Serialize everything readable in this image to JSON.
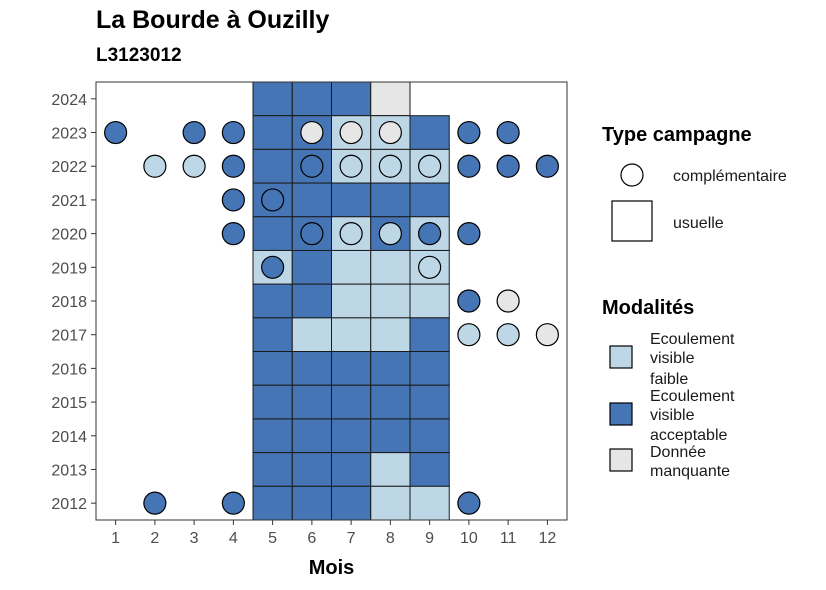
{
  "chart_data": {
    "type": "heatmap",
    "title": "La Bourde à Ouzilly",
    "subtitle": "L3123012",
    "xlabel": "Mois",
    "ylabel": "",
    "x_ticks": [
      "1",
      "2",
      "3",
      "4",
      "5",
      "6",
      "7",
      "8",
      "9",
      "10",
      "11",
      "12"
    ],
    "y_ticks": [
      "2012",
      "2013",
      "2014",
      "2015",
      "2016",
      "2017",
      "2018",
      "2019",
      "2020",
      "2021",
      "2022",
      "2023",
      "2024"
    ],
    "xlim": [
      0.5,
      12.5
    ],
    "ylim": [
      2011.5,
      2024.5
    ],
    "grid": false,
    "legend_position": "right",
    "colors": {
      "faible": "#bdd7e7",
      "acceptable": "#4575b4",
      "manquante": "#e6e6e6"
    },
    "legend": {
      "type_title": "Type campagne",
      "type_items": [
        {
          "shape": "circle",
          "label": "complémentaire"
        },
        {
          "shape": "square",
          "label": "usuelle"
        }
      ],
      "mod_title": "Modalités",
      "mod_items": [
        {
          "key": "faible",
          "lines": [
            "Ecoulement",
            "visible",
            "faible"
          ]
        },
        {
          "key": "acceptable",
          "lines": [
            "Ecoulement",
            "visible",
            "acceptable"
          ]
        },
        {
          "key": "manquante",
          "lines": [
            "Donnée",
            "manquante"
          ]
        }
      ]
    },
    "usuelle": [
      {
        "year": 2024,
        "month": 5,
        "mod": "acceptable"
      },
      {
        "year": 2024,
        "month": 6,
        "mod": "acceptable"
      },
      {
        "year": 2024,
        "month": 7,
        "mod": "acceptable"
      },
      {
        "year": 2024,
        "month": 8,
        "mod": "manquante"
      },
      {
        "year": 2023,
        "month": 5,
        "mod": "acceptable"
      },
      {
        "year": 2023,
        "month": 6,
        "mod": "acceptable"
      },
      {
        "year": 2023,
        "month": 7,
        "mod": "faible"
      },
      {
        "year": 2023,
        "month": 8,
        "mod": "faible"
      },
      {
        "year": 2023,
        "month": 9,
        "mod": "acceptable"
      },
      {
        "year": 2022,
        "month": 5,
        "mod": "acceptable"
      },
      {
        "year": 2022,
        "month": 6,
        "mod": "acceptable"
      },
      {
        "year": 2022,
        "month": 7,
        "mod": "faible"
      },
      {
        "year": 2022,
        "month": 8,
        "mod": "faible"
      },
      {
        "year": 2022,
        "month": 9,
        "mod": "faible"
      },
      {
        "year": 2021,
        "month": 5,
        "mod": "acceptable"
      },
      {
        "year": 2021,
        "month": 6,
        "mod": "acceptable"
      },
      {
        "year": 2021,
        "month": 7,
        "mod": "acceptable"
      },
      {
        "year": 2021,
        "month": 8,
        "mod": "acceptable"
      },
      {
        "year": 2021,
        "month": 9,
        "mod": "acceptable"
      },
      {
        "year": 2020,
        "month": 5,
        "mod": "acceptable"
      },
      {
        "year": 2020,
        "month": 6,
        "mod": "acceptable"
      },
      {
        "year": 2020,
        "month": 7,
        "mod": "faible"
      },
      {
        "year": 2020,
        "month": 8,
        "mod": "acceptable"
      },
      {
        "year": 2020,
        "month": 9,
        "mod": "faible"
      },
      {
        "year": 2019,
        "month": 5,
        "mod": "faible"
      },
      {
        "year": 2019,
        "month": 6,
        "mod": "acceptable"
      },
      {
        "year": 2019,
        "month": 7,
        "mod": "faible"
      },
      {
        "year": 2019,
        "month": 8,
        "mod": "faible"
      },
      {
        "year": 2019,
        "month": 9,
        "mod": "faible"
      },
      {
        "year": 2018,
        "month": 5,
        "mod": "acceptable"
      },
      {
        "year": 2018,
        "month": 6,
        "mod": "acceptable"
      },
      {
        "year": 2018,
        "month": 7,
        "mod": "faible"
      },
      {
        "year": 2018,
        "month": 8,
        "mod": "faible"
      },
      {
        "year": 2018,
        "month": 9,
        "mod": "faible"
      },
      {
        "year": 2017,
        "month": 5,
        "mod": "acceptable"
      },
      {
        "year": 2017,
        "month": 6,
        "mod": "faible"
      },
      {
        "year": 2017,
        "month": 7,
        "mod": "faible"
      },
      {
        "year": 2017,
        "month": 8,
        "mod": "faible"
      },
      {
        "year": 2017,
        "month": 9,
        "mod": "acceptable"
      },
      {
        "year": 2016,
        "month": 5,
        "mod": "acceptable"
      },
      {
        "year": 2016,
        "month": 6,
        "mod": "acceptable"
      },
      {
        "year": 2016,
        "month": 7,
        "mod": "acceptable"
      },
      {
        "year": 2016,
        "month": 8,
        "mod": "acceptable"
      },
      {
        "year": 2016,
        "month": 9,
        "mod": "acceptable"
      },
      {
        "year": 2015,
        "month": 5,
        "mod": "acceptable"
      },
      {
        "year": 2015,
        "month": 6,
        "mod": "acceptable"
      },
      {
        "year": 2015,
        "month": 7,
        "mod": "acceptable"
      },
      {
        "year": 2015,
        "month": 8,
        "mod": "acceptable"
      },
      {
        "year": 2015,
        "month": 9,
        "mod": "acceptable"
      },
      {
        "year": 2014,
        "month": 5,
        "mod": "acceptable"
      },
      {
        "year": 2014,
        "month": 6,
        "mod": "acceptable"
      },
      {
        "year": 2014,
        "month": 7,
        "mod": "acceptable"
      },
      {
        "year": 2014,
        "month": 8,
        "mod": "acceptable"
      },
      {
        "year": 2014,
        "month": 9,
        "mod": "acceptable"
      },
      {
        "year": 2013,
        "month": 5,
        "mod": "acceptable"
      },
      {
        "year": 2013,
        "month": 6,
        "mod": "acceptable"
      },
      {
        "year": 2013,
        "month": 7,
        "mod": "acceptable"
      },
      {
        "year": 2013,
        "month": 8,
        "mod": "faible"
      },
      {
        "year": 2013,
        "month": 9,
        "mod": "acceptable"
      },
      {
        "year": 2012,
        "month": 5,
        "mod": "acceptable"
      },
      {
        "year": 2012,
        "month": 6,
        "mod": "acceptable"
      },
      {
        "year": 2012,
        "month": 7,
        "mod": "acceptable"
      },
      {
        "year": 2012,
        "month": 8,
        "mod": "faible"
      },
      {
        "year": 2012,
        "month": 9,
        "mod": "faible"
      }
    ],
    "complementaire": [
      {
        "year": 2023,
        "month": 1,
        "mod": "acceptable"
      },
      {
        "year": 2023,
        "month": 3,
        "mod": "acceptable"
      },
      {
        "year": 2023,
        "month": 4,
        "mod": "acceptable"
      },
      {
        "year": 2023,
        "month": 6,
        "mod": "manquante"
      },
      {
        "year": 2023,
        "month": 7,
        "mod": "manquante"
      },
      {
        "year": 2023,
        "month": 8,
        "mod": "manquante"
      },
      {
        "year": 2023,
        "month": 10,
        "mod": "acceptable"
      },
      {
        "year": 2023,
        "month": 11,
        "mod": "acceptable"
      },
      {
        "year": 2022,
        "month": 2,
        "mod": "faible"
      },
      {
        "year": 2022,
        "month": 3,
        "mod": "faible"
      },
      {
        "year": 2022,
        "month": 4,
        "mod": "acceptable"
      },
      {
        "year": 2022,
        "month": 6,
        "mod": "acceptable"
      },
      {
        "year": 2022,
        "month": 7,
        "mod": "faible"
      },
      {
        "year": 2022,
        "month": 8,
        "mod": "faible"
      },
      {
        "year": 2022,
        "month": 9,
        "mod": "faible"
      },
      {
        "year": 2022,
        "month": 10,
        "mod": "acceptable"
      },
      {
        "year": 2022,
        "month": 11,
        "mod": "acceptable"
      },
      {
        "year": 2022,
        "month": 12,
        "mod": "acceptable"
      },
      {
        "year": 2021,
        "month": 4,
        "mod": "acceptable"
      },
      {
        "year": 2021,
        "month": 5,
        "mod": "acceptable"
      },
      {
        "year": 2020,
        "month": 4,
        "mod": "acceptable"
      },
      {
        "year": 2020,
        "month": 6,
        "mod": "acceptable"
      },
      {
        "year": 2020,
        "month": 7,
        "mod": "faible"
      },
      {
        "year": 2020,
        "month": 8,
        "mod": "faible"
      },
      {
        "year": 2020,
        "month": 9,
        "mod": "acceptable"
      },
      {
        "year": 2020,
        "month": 10,
        "mod": "acceptable"
      },
      {
        "year": 2019,
        "month": 5,
        "mod": "acceptable"
      },
      {
        "year": 2019,
        "month": 9,
        "mod": "faible"
      },
      {
        "year": 2018,
        "month": 10,
        "mod": "acceptable"
      },
      {
        "year": 2018,
        "month": 11,
        "mod": "manquante"
      },
      {
        "year": 2017,
        "month": 10,
        "mod": "faible"
      },
      {
        "year": 2017,
        "month": 11,
        "mod": "faible"
      },
      {
        "year": 2017,
        "month": 12,
        "mod": "manquante"
      },
      {
        "year": 2012,
        "month": 2,
        "mod": "acceptable"
      },
      {
        "year": 2012,
        "month": 4,
        "mod": "acceptable"
      },
      {
        "year": 2012,
        "month": 10,
        "mod": "acceptable"
      }
    ]
  }
}
